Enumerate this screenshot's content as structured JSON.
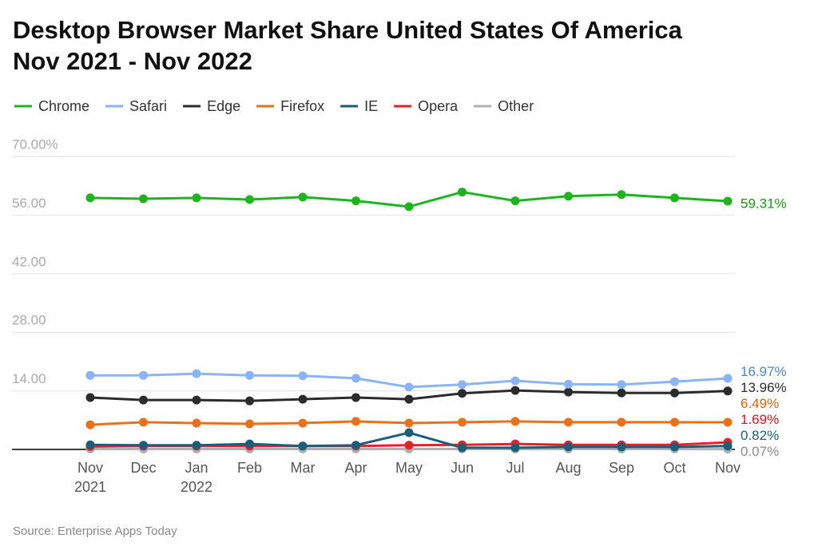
{
  "chart_data": {
    "type": "line",
    "title": [
      "Desktop Browser Market Share United States Of America",
      "Nov 2021 - Nov 2022"
    ],
    "source": "Source: Enterprise Apps Today",
    "categories": [
      "Nov",
      "Dec",
      "Jan",
      "Feb",
      "Mar",
      "Apr",
      "May",
      "Jun",
      "Jul",
      "Aug",
      "Sep",
      "Oct",
      "Nov"
    ],
    "x_sublabels": [
      "2021",
      null,
      "2022",
      null,
      null,
      null,
      null,
      null,
      null,
      null,
      null,
      null,
      null
    ],
    "ylim": [
      0,
      70
    ],
    "yticks": [
      {
        "value": 14,
        "label": "14.00"
      },
      {
        "value": 28,
        "label": "28.00"
      },
      {
        "value": 42,
        "label": "42.00"
      },
      {
        "value": 56,
        "label": "56.00"
      },
      {
        "value": 70,
        "label": "70.00%"
      }
    ],
    "grid": true,
    "legend": "top",
    "series": [
      {
        "name": "Chrome",
        "color": "#1db41d",
        "label_color": "#149a14",
        "end_label": "59.31%",
        "values": [
          60.1,
          59.9,
          60.1,
          59.7,
          60.3,
          59.4,
          58.0,
          61.5,
          59.4,
          60.5,
          60.9,
          60.1,
          59.31
        ]
      },
      {
        "name": "Safari",
        "color": "#8ab4f8",
        "label_color": "#4a86c8",
        "end_label": "16.97%",
        "values": [
          17.7,
          17.7,
          18.1,
          17.7,
          17.6,
          17.0,
          14.9,
          15.5,
          16.4,
          15.6,
          15.5,
          16.2,
          16.97
        ]
      },
      {
        "name": "Edge",
        "color": "#2b2b2b",
        "label_color": "#2b2b2b",
        "end_label": "13.96%",
        "values": [
          12.4,
          11.8,
          11.8,
          11.6,
          12.0,
          12.4,
          12.0,
          13.4,
          14.1,
          13.7,
          13.5,
          13.5,
          13.96
        ]
      },
      {
        "name": "Firefox",
        "color": "#e8711a",
        "label_color": "#d9620f",
        "end_label": "6.49%",
        "values": [
          5.9,
          6.5,
          6.3,
          6.1,
          6.3,
          6.7,
          6.3,
          6.5,
          6.7,
          6.5,
          6.5,
          6.5,
          6.49
        ]
      },
      {
        "name": "IE",
        "color": "#1a5f7a",
        "label_color": "#1a5f7a",
        "end_label": "0.82%",
        "values": [
          1.1,
          1.0,
          1.0,
          1.3,
          0.8,
          1.0,
          4.0,
          0.4,
          0.4,
          0.6,
          0.6,
          0.6,
          0.82
        ]
      },
      {
        "name": "Opera",
        "color": "#e8202a",
        "label_color": "#e0141e",
        "end_label": "1.69%",
        "values": [
          0.7,
          0.8,
          0.8,
          0.8,
          0.8,
          0.8,
          1.0,
          1.1,
          1.3,
          1.1,
          1.1,
          1.1,
          1.69
        ]
      },
      {
        "name": "Other",
        "color": "#b0b0b0",
        "label_color": "#8a8a8a",
        "end_label": "0.07%",
        "values": [
          0.1,
          0.1,
          0.1,
          0.1,
          0.1,
          0.1,
          0.1,
          0.1,
          0.1,
          0.1,
          0.1,
          0.1,
          0.07
        ]
      }
    ]
  }
}
